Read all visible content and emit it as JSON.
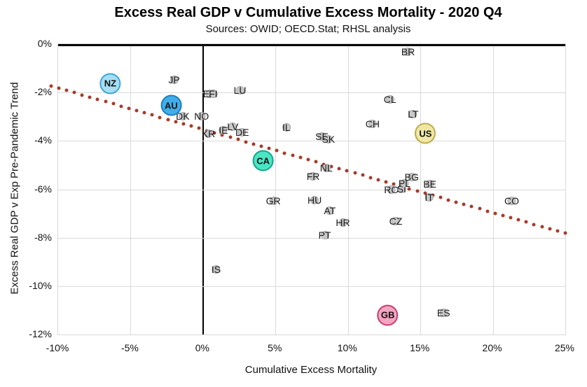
{
  "chart_data": {
    "type": "scatter",
    "title": "Excess Real GDP v Cumulative Excess Mortality - 2020 Q4",
    "subtitle": "Sources: OWID; OECD.Stat; RHSL analysis",
    "xlabel": "Cumulative Excess Mortality",
    "ylabel": "Excess Real GDP v Exp Pre-Pandemic Trend",
    "xlim": [
      -10,
      25
    ],
    "ylim": [
      -12,
      0
    ],
    "grid": true,
    "legend": "none",
    "x_ticks": [
      {
        "label": "-10%",
        "value": -10
      },
      {
        "label": "-5%",
        "value": -5
      },
      {
        "label": "0%",
        "value": 0
      },
      {
        "label": "5%",
        "value": 5
      },
      {
        "label": "10%",
        "value": 10
      },
      {
        "label": "15%",
        "value": 15
      },
      {
        "label": "20%",
        "value": 20
      },
      {
        "label": "25%",
        "value": 25
      }
    ],
    "y_ticks": [
      {
        "label": "0%",
        "value": 0
      },
      {
        "label": "-2%",
        "value": -2
      },
      {
        "label": "-4%",
        "value": -4
      },
      {
        "label": "-6%",
        "value": -6
      },
      {
        "label": "-8%",
        "value": -8
      },
      {
        "label": "-10%",
        "value": -10
      },
      {
        "label": "-12%",
        "value": -12
      }
    ],
    "colors": {
      "gridline": "#d9d9d9",
      "axis_line": "#000000",
      "default_marker_fill": "#c9c9c9",
      "default_marker_border": "#a6a6a6",
      "trendline": "#a83b28"
    },
    "trendline": {
      "style": "dotted",
      "color": "#a83b28",
      "x1": -10.5,
      "y1": -1.73,
      "x2": 25,
      "y2": -7.82,
      "dots": 67
    },
    "points": [
      {
        "label": "NZ",
        "x": -6.4,
        "y": -1.63,
        "highlight": {
          "fill": "#a6def4",
          "border": "#3fa4d8"
        }
      },
      {
        "label": "JP",
        "x": -2.0,
        "y": -1.48
      },
      {
        "label": "AU",
        "x": -2.2,
        "y": -2.54,
        "highlight": {
          "fill": "#41aee9",
          "border": "#1b7ec2"
        }
      },
      {
        "label": "DK",
        "x": -1.4,
        "y": -2.98
      },
      {
        "label": "NO",
        "x": -0.1,
        "y": -2.98
      },
      {
        "label": "EE",
        "x": 0.45,
        "y": -2.06
      },
      {
        "label": "FI",
        "x": 0.7,
        "y": -2.06
      },
      {
        "label": "LU",
        "x": 2.55,
        "y": -1.9
      },
      {
        "label": "KR",
        "x": 0.37,
        "y": -3.7
      },
      {
        "label": "IE",
        "x": 1.4,
        "y": -3.55
      },
      {
        "label": "LV",
        "x": 2.05,
        "y": -3.4
      },
      {
        "label": "DE",
        "x": 2.7,
        "y": -3.65
      },
      {
        "label": "IL",
        "x": 5.75,
        "y": -3.45
      },
      {
        "label": "SE",
        "x": 8.2,
        "y": -3.82
      },
      {
        "label": "SK",
        "x": 8.65,
        "y": -3.92
      },
      {
        "label": "CH",
        "x": 11.7,
        "y": -3.3
      },
      {
        "label": "CL",
        "x": 12.9,
        "y": -2.28
      },
      {
        "label": "LT",
        "x": 14.5,
        "y": -2.9
      },
      {
        "label": "US",
        "x": 15.35,
        "y": -3.7,
        "highlight": {
          "fill": "#efe8a5",
          "border": "#bcaa4e"
        }
      },
      {
        "label": "BR",
        "x": 14.15,
        "y": -0.33
      },
      {
        "label": "CA",
        "x": 4.15,
        "y": -4.82,
        "highlight": {
          "fill": "#4be5c3",
          "border": "#0fa78c"
        }
      },
      {
        "label": "NL",
        "x": 8.5,
        "y": -5.12
      },
      {
        "label": "FR",
        "x": 7.6,
        "y": -5.46
      },
      {
        "label": "GR",
        "x": 4.85,
        "y": -6.47
      },
      {
        "label": "HU",
        "x": 7.7,
        "y": -6.44
      },
      {
        "label": "AT",
        "x": 8.75,
        "y": -6.88
      },
      {
        "label": "HR",
        "x": 9.65,
        "y": -7.37
      },
      {
        "label": "PT",
        "x": 8.4,
        "y": -7.88
      },
      {
        "label": "CZ",
        "x": 13.3,
        "y": -7.33
      },
      {
        "label": "RO",
        "x": 13.0,
        "y": -6.0
      },
      {
        "label": "SI",
        "x": 13.7,
        "y": -5.99
      },
      {
        "label": "PL",
        "x": 13.9,
        "y": -5.75
      },
      {
        "label": "BG",
        "x": 14.4,
        "y": -5.49
      },
      {
        "label": "BE",
        "x": 15.65,
        "y": -5.78
      },
      {
        "label": "IT",
        "x": 15.6,
        "y": -6.32
      },
      {
        "label": "CO",
        "x": 21.3,
        "y": -6.48
      },
      {
        "label": "IS",
        "x": 0.9,
        "y": -9.3
      },
      {
        "label": "GB",
        "x": 12.75,
        "y": -11.2,
        "highlight": {
          "fill": "#f3a5c1",
          "border": "#cc3c6f"
        }
      },
      {
        "label": "ES",
        "x": 16.6,
        "y": -11.1
      }
    ]
  }
}
